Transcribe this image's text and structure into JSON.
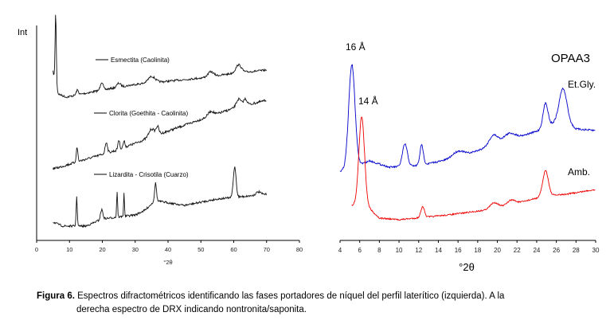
{
  "chart_data": [
    {
      "type": "line",
      "title": "",
      "ylabel": "Int",
      "xlabel": "°2θ",
      "xlim": [
        0,
        80
      ],
      "xticks": [
        0,
        10,
        20,
        30,
        40,
        50,
        60,
        70,
        80
      ],
      "grid": false,
      "series": [
        {
          "name": "Esmectita (Caolinita)",
          "color": "#000000",
          "peaks_2theta": [
            5.8,
            12.4,
            19.8,
            25.0,
            35.0,
            53.0,
            61.5
          ]
        },
        {
          "name": "Clorita (Goethita - Caolinita)",
          "color": "#000000",
          "peaks_2theta": [
            6.2,
            12.3,
            21.2,
            25.0,
            26.6,
            35.0,
            36.8,
            53.0,
            61.5,
            63.5
          ]
        },
        {
          "name": "Lizardita - Crisotila (Cuarzo)",
          "color": "#000000",
          "peaks_2theta": [
            12.2,
            19.8,
            24.5,
            26.6,
            36.2,
            60.3,
            67.5
          ]
        }
      ]
    },
    {
      "type": "line",
      "title": "OPAA3",
      "xlabel": "°2θ",
      "xlim": [
        4,
        30
      ],
      "xticks": [
        4,
        6,
        8,
        10,
        12,
        14,
        16,
        18,
        20,
        22,
        24,
        26,
        28,
        30
      ],
      "grid": false,
      "annotations": [
        "16 Å",
        "14 Å"
      ],
      "series": [
        {
          "name": "Et.Gly.",
          "color": "#0000cc",
          "peaks_2theta": [
            5.2,
            10.6,
            12.3,
            16.0,
            19.6,
            21.2,
            24.9,
            26.7
          ]
        },
        {
          "name": "Amb.",
          "color": "#ee0000",
          "peaks_2theta": [
            6.2,
            12.4,
            19.7,
            21.4,
            24.9
          ]
        }
      ]
    }
  ],
  "caption": {
    "label": "Figura 6.",
    "line1": " Espectros difractométricos identificando las fases portadores de níquel del perfil laterítico (izquierda). A la",
    "line2": "derecha espectro de DRX indicando nontronita/saponita."
  }
}
